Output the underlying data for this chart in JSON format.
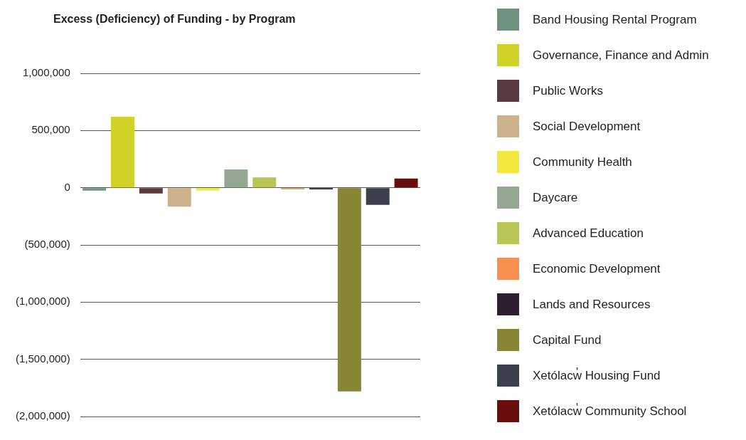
{
  "chart_data": {
    "type": "bar",
    "title": "Excess (Deficiency) of Funding - by Program",
    "categories": [
      null,
      null,
      null,
      null,
      null,
      null,
      null,
      null,
      null,
      null,
      null,
      null
    ],
    "series": [
      {
        "name": "Band Housing Rental Program",
        "color": "#6f9280",
        "values": [
          -25000,
          null,
          null,
          null,
          null,
          null,
          null,
          null,
          null,
          null,
          null,
          null
        ]
      },
      {
        "name": "Governance, Finance and Admin",
        "color": "#d0d229",
        "values": [
          null,
          620000,
          null,
          null,
          null,
          null,
          null,
          null,
          null,
          null,
          null,
          null
        ]
      },
      {
        "name": "Public Works",
        "color": "#5a3a40",
        "values": [
          null,
          null,
          -50000,
          null,
          null,
          null,
          null,
          null,
          null,
          null,
          null,
          null
        ]
      },
      {
        "name": "Social Development",
        "color": "#cbb28a",
        "values": [
          null,
          null,
          null,
          -165000,
          null,
          null,
          null,
          null,
          null,
          null,
          null,
          null
        ]
      },
      {
        "name": "Community Health",
        "color": "#f2e83e",
        "values": [
          null,
          null,
          null,
          null,
          -25000,
          null,
          null,
          null,
          null,
          null,
          null,
          null
        ]
      },
      {
        "name": "Daycare",
        "color": "#95a891",
        "values": [
          null,
          null,
          null,
          null,
          null,
          160000,
          null,
          null,
          null,
          null,
          null,
          null
        ]
      },
      {
        "name": "Advanced Education",
        "color": "#b7c654",
        "values": [
          null,
          null,
          null,
          null,
          null,
          null,
          90000,
          null,
          null,
          null,
          null,
          null
        ]
      },
      {
        "name": "Economic Development",
        "color": "#f88f4f",
        "values": [
          null,
          null,
          null,
          null,
          null,
          null,
          null,
          -15000,
          null,
          null,
          null,
          null
        ]
      },
      {
        "name": "Lands and Resources",
        "color": "#2d1f2f",
        "values": [
          null,
          null,
          null,
          null,
          null,
          null,
          null,
          null,
          -15000,
          null,
          null,
          null
        ]
      },
      {
        "name": "Capital Fund",
        "color": "#878634",
        "values": [
          null,
          null,
          null,
          null,
          null,
          null,
          null,
          null,
          null,
          -1780000,
          null,
          null
        ]
      },
      {
        "name": "Xetólacw̓ Housing Fund",
        "color": "#3c3f4c",
        "values": [
          null,
          null,
          null,
          null,
          null,
          null,
          null,
          null,
          null,
          null,
          -150000,
          null
        ]
      },
      {
        "name": "Xetólacw̓ Community School",
        "color": "#6a0d0d",
        "values": [
          null,
          null,
          null,
          null,
          null,
          null,
          null,
          null,
          null,
          null,
          null,
          80000
        ]
      }
    ],
    "ylim": [
      -2000000,
      1000000
    ],
    "yticks": [
      {
        "value": -2000000,
        "label": "(2,000,000)"
      },
      {
        "value": -1500000,
        "label": "(1,500,000)"
      },
      {
        "value": -1000000,
        "label": "(1,000,000)"
      },
      {
        "value": -500000,
        "label": "(500,000)"
      },
      0,
      {
        "value": 500000,
        "label": "500,000"
      },
      {
        "value": 1000000,
        "label": "1,000,000"
      }
    ],
    "grid": "y",
    "legend": "right",
    "tick_labels": "y"
  }
}
